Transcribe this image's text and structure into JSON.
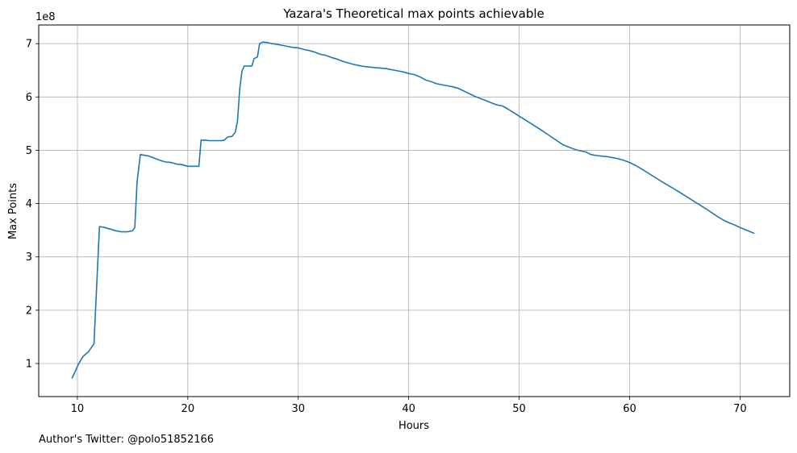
{
  "chart_data": {
    "type": "line",
    "title": "Yazara's Theoretical max points achievable",
    "xlabel": "Hours",
    "ylabel": "Max Points",
    "y_offset_label": "1e8",
    "xlim": [
      6.5,
      74.5
    ],
    "ylim": [
      0.38,
      7.35
    ],
    "x_ticks": [
      10,
      20,
      30,
      40,
      50,
      60,
      70
    ],
    "y_ticks": [
      1,
      2,
      3,
      4,
      5,
      6,
      7
    ],
    "grid": true,
    "line_color": "#1f77b4",
    "series": [
      {
        "x": [
          9.5,
          9.8,
          10.1,
          10.5,
          11.0,
          11.5,
          12.0,
          12.5,
          13.0,
          13.5,
          14.0,
          14.5,
          15.0,
          15.2,
          15.4,
          15.7,
          16.0,
          16.5,
          17.0,
          17.5,
          18.0,
          18.5,
          19.0,
          19.5,
          20.0,
          20.5,
          21.0,
          21.2,
          21.5,
          22.0,
          22.5,
          23.0,
          23.3,
          23.6,
          24.0,
          24.3,
          24.5,
          24.7,
          24.9,
          25.1,
          25.5,
          25.8,
          26.0,
          26.3,
          26.5,
          26.8,
          27.2,
          27.6,
          28.0,
          28.5,
          29.0,
          29.5,
          30.0,
          30.5,
          31.0,
          31.5,
          32.0,
          32.5,
          33.0,
          33.5,
          34.0,
          34.5,
          35.0,
          35.5,
          36.0,
          36.5,
          37.0,
          37.5,
          38.0,
          38.5,
          39.0,
          39.5,
          40.0,
          40.5,
          41.0,
          41.5,
          42.0,
          42.5,
          43.0,
          43.5,
          44.0,
          44.5,
          45.0,
          45.5,
          46.0,
          46.5,
          47.0,
          47.5,
          48.0,
          48.5,
          49.0,
          50.0,
          51.0,
          52.0,
          53.0,
          54.0,
          54.5,
          55.0,
          55.5,
          56.0,
          56.5,
          57.0,
          57.5,
          58.0,
          58.5,
          59.0,
          59.5,
          60.0,
          60.5,
          61.0,
          62.0,
          63.0,
          64.0,
          65.0,
          66.0,
          67.0,
          68.0,
          68.5,
          69.0,
          69.5,
          70.0,
          70.5,
          71.3
        ],
        "y": [
          0.72,
          0.85,
          0.99,
          1.13,
          1.22,
          1.37,
          3.57,
          3.55,
          3.52,
          3.49,
          3.47,
          3.47,
          3.49,
          3.55,
          4.4,
          4.92,
          4.91,
          4.89,
          4.85,
          4.81,
          4.78,
          4.77,
          4.74,
          4.73,
          4.7,
          4.7,
          4.7,
          5.19,
          5.19,
          5.18,
          5.18,
          5.18,
          5.19,
          5.25,
          5.26,
          5.34,
          5.55,
          6.15,
          6.48,
          6.58,
          6.58,
          6.58,
          6.72,
          6.75,
          7.0,
          7.03,
          7.02,
          7.0,
          6.99,
          6.97,
          6.95,
          6.93,
          6.92,
          6.89,
          6.87,
          6.84,
          6.8,
          6.78,
          6.74,
          6.71,
          6.67,
          6.64,
          6.61,
          6.59,
          6.57,
          6.56,
          6.55,
          6.54,
          6.53,
          6.51,
          6.49,
          6.47,
          6.44,
          6.42,
          6.38,
          6.32,
          6.29,
          6.25,
          6.23,
          6.21,
          6.19,
          6.16,
          6.11,
          6.06,
          6.01,
          5.97,
          5.93,
          5.89,
          5.85,
          5.83,
          5.77,
          5.64,
          5.51,
          5.38,
          5.24,
          5.1,
          5.06,
          5.02,
          4.99,
          4.97,
          4.92,
          4.9,
          4.89,
          4.88,
          4.86,
          4.84,
          4.81,
          4.77,
          4.72,
          4.66,
          4.53,
          4.4,
          4.28,
          4.15,
          4.02,
          3.89,
          3.75,
          3.69,
          3.64,
          3.6,
          3.55,
          3.51,
          3.44
        ]
      }
    ]
  },
  "footer": {
    "credit": "Author's Twitter: @polo51852166"
  }
}
